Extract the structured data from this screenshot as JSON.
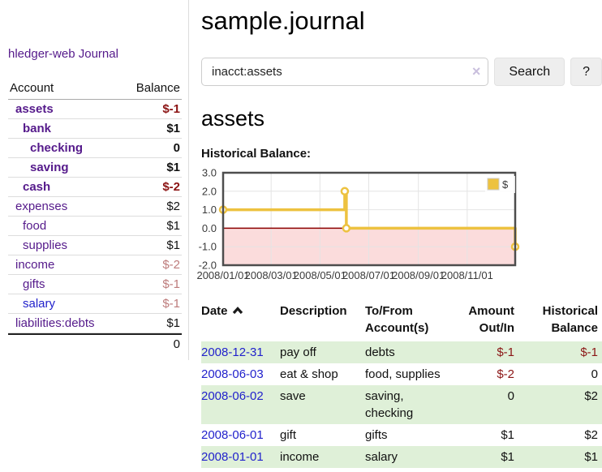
{
  "sidebar": {
    "brand": "hledger-web",
    "journal_link": "Journal",
    "table_headers": {
      "account": "Account",
      "balance": "Balance"
    },
    "accounts": [
      {
        "name": "assets",
        "balance": "$-1",
        "depth": 1,
        "bold": true,
        "tone": "neg-strong"
      },
      {
        "name": "bank",
        "balance": "$1",
        "depth": 2,
        "bold": true,
        "tone": "pos"
      },
      {
        "name": "checking",
        "balance": "0",
        "depth": 3,
        "bold": true,
        "tone": "pos"
      },
      {
        "name": "saving",
        "balance": "$1",
        "depth": 3,
        "bold": true,
        "tone": "pos"
      },
      {
        "name": "cash",
        "balance": "$-2",
        "depth": 2,
        "bold": true,
        "tone": "neg-strong"
      },
      {
        "name": "expenses",
        "balance": "$2",
        "depth": 1,
        "bold": false,
        "tone": "pos"
      },
      {
        "name": "food",
        "balance": "$1",
        "depth": 2,
        "bold": false,
        "tone": "pos"
      },
      {
        "name": "supplies",
        "balance": "$1",
        "depth": 2,
        "bold": false,
        "tone": "pos"
      },
      {
        "name": "income",
        "balance": "$-2",
        "depth": 1,
        "bold": false,
        "tone": "neg-soft"
      },
      {
        "name": "gifts",
        "balance": "$-1",
        "depth": 2,
        "bold": false,
        "tone": "neg-soft"
      },
      {
        "name": "salary",
        "balance": "$-1",
        "depth": 2,
        "bold": false,
        "tone": "neg-soft",
        "link_color": "blue"
      },
      {
        "name": "liabilities:debts",
        "balance": "$1",
        "depth": 1,
        "bold": false,
        "tone": "pos"
      }
    ],
    "total": "0"
  },
  "header": {
    "title": "sample.journal"
  },
  "search": {
    "query": "inacct:assets",
    "clear_icon": "×",
    "button_label": "Search",
    "help_label": "?"
  },
  "account_page": {
    "heading": "assets",
    "chart_label": "Historical Balance:"
  },
  "chart_data": {
    "type": "line",
    "line_style": "step-after",
    "title": "Historical Balance",
    "xrange": [
      "2008-01-01",
      "2008-12-31"
    ],
    "ylim": [
      -2,
      3
    ],
    "yticks": [
      3.0,
      2.0,
      1.0,
      0.0,
      -1.0,
      -2.0
    ],
    "xticks": [
      "2008/01/01",
      "2008/03/01",
      "2008/05/01",
      "2008/07/01",
      "2008/09/01",
      "2008/11/01"
    ],
    "grid": true,
    "legend_position": "top-right",
    "series": [
      {
        "name": "$",
        "color": "#EDC240",
        "points": [
          [
            "2008-01-01",
            1
          ],
          [
            "2008-06-01",
            2
          ],
          [
            "2008-06-03",
            0
          ],
          [
            "2008-12-31",
            -1
          ]
        ]
      }
    ],
    "colors": {
      "negative_fill": "#fbdcdc",
      "zero_line": "#8b0000",
      "grid": "#e4e4e4",
      "border": "#4d4d4d",
      "marker_fill": "#ffffff"
    }
  },
  "register": {
    "headers": {
      "date": "Date",
      "description": "Description",
      "account": "To/From Account(s)",
      "amount": "Amount Out/In",
      "balance": "Historical Balance"
    },
    "sort": "ascending",
    "rows": [
      {
        "date": "2008-12-31",
        "description": "pay off",
        "accounts": "debts",
        "amount": "$-1",
        "amount_tone": "neg",
        "balance": "$-1",
        "balance_tone": "neg",
        "shade": "green"
      },
      {
        "date": "2008-06-03",
        "description": "eat & shop",
        "accounts": "food, supplies",
        "amount": "$-2",
        "amount_tone": "neg",
        "balance": "0",
        "balance_tone": "pos",
        "shade": "white"
      },
      {
        "date": "2008-06-02",
        "description": "save",
        "accounts": "saving, checking",
        "amount": "0",
        "amount_tone": "pos",
        "balance": "$2",
        "balance_tone": "pos",
        "shade": "green"
      },
      {
        "date": "2008-06-01",
        "description": "gift",
        "accounts": "gifts",
        "amount": "$1",
        "amount_tone": "pos",
        "balance": "$2",
        "balance_tone": "pos",
        "shade": "white"
      },
      {
        "date": "2008-01-01",
        "description": "income",
        "accounts": "salary",
        "amount": "$1",
        "amount_tone": "pos",
        "balance": "$1",
        "balance_tone": "pos",
        "shade": "green"
      }
    ]
  }
}
